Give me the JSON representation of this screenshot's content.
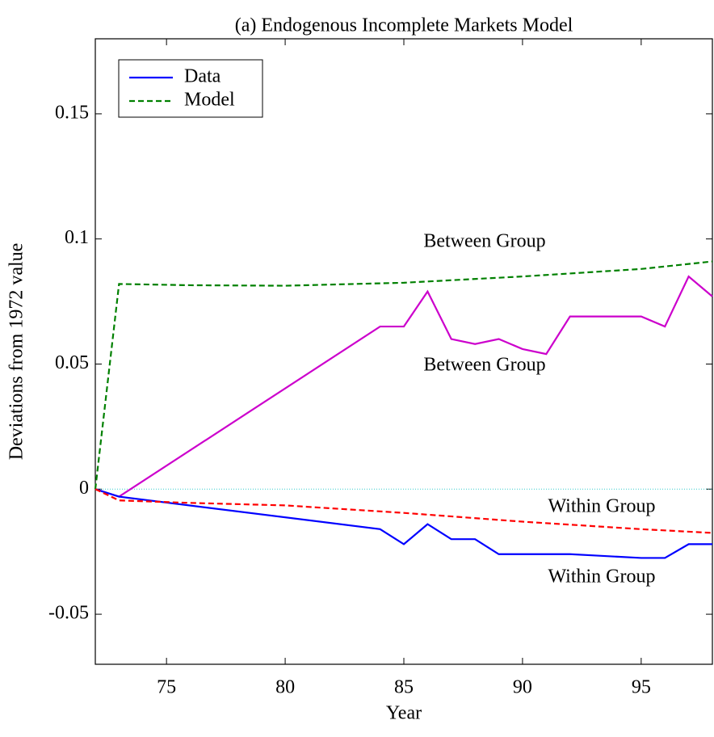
{
  "chart_data": {
    "type": "line",
    "title": "(a) Endogenous Incomplete Markets Model",
    "x_label": "Year",
    "y_label": "Deviations from 1972 value",
    "xlim": [
      72,
      98
    ],
    "ylim": [
      -0.07,
      0.18
    ],
    "xticks": [
      75,
      80,
      85,
      90,
      95
    ],
    "yticks": [
      -0.05,
      0,
      0.05,
      0.1,
      0.15
    ],
    "hline": 0,
    "hline_color": "#33cccc",
    "legend_position": "upper-left",
    "legend": [
      {
        "label": "Data",
        "color": "#0000ff",
        "style": "solid"
      },
      {
        "label": "Model",
        "color": "#008000",
        "style": "dashed"
      }
    ],
    "series": [
      {
        "color": "#cc00cc",
        "style": "solid",
        "x": [
          72,
          73,
          84,
          85,
          86,
          87,
          88,
          89,
          90,
          91,
          92,
          93,
          94,
          95,
          96,
          97,
          98
        ],
        "values": [
          0,
          -0.003,
          0.065,
          0.065,
          0.079,
          0.06,
          0.058,
          0.06,
          0.056,
          0.054,
          0.069,
          0.069,
          0.069,
          0.069,
          0.065,
          0.085,
          0.077
        ]
      },
      {
        "color": "#0000ff",
        "style": "solid",
        "x": [
          72,
          73,
          84,
          85,
          86,
          87,
          88,
          89,
          90,
          91,
          92,
          93,
          94,
          95,
          96,
          97,
          98
        ],
        "values": [
          0,
          -0.003,
          -0.016,
          -0.022,
          -0.014,
          -0.02,
          -0.02,
          -0.026,
          -0.026,
          -0.026,
          -0.026,
          -0.0265,
          -0.027,
          -0.0275,
          -0.0275,
          -0.022,
          -0.022
        ]
      },
      {
        "color": "#008000",
        "style": "dashed",
        "x": [
          72,
          73,
          76,
          80,
          85,
          90,
          95,
          98
        ],
        "values": [
          0,
          0.082,
          0.0815,
          0.0813,
          0.0825,
          0.085,
          0.088,
          0.091
        ]
      },
      {
        "color": "#ff0000",
        "style": "dashed",
        "x": [
          72,
          73,
          76,
          80,
          85,
          90,
          95,
          98
        ],
        "values": [
          0,
          -0.0045,
          -0.0055,
          -0.0065,
          -0.0095,
          -0.013,
          -0.016,
          -0.0175
        ]
      }
    ],
    "annotations": [
      "Between Group",
      "Between Group",
      "Within Group",
      "Within Group"
    ]
  }
}
